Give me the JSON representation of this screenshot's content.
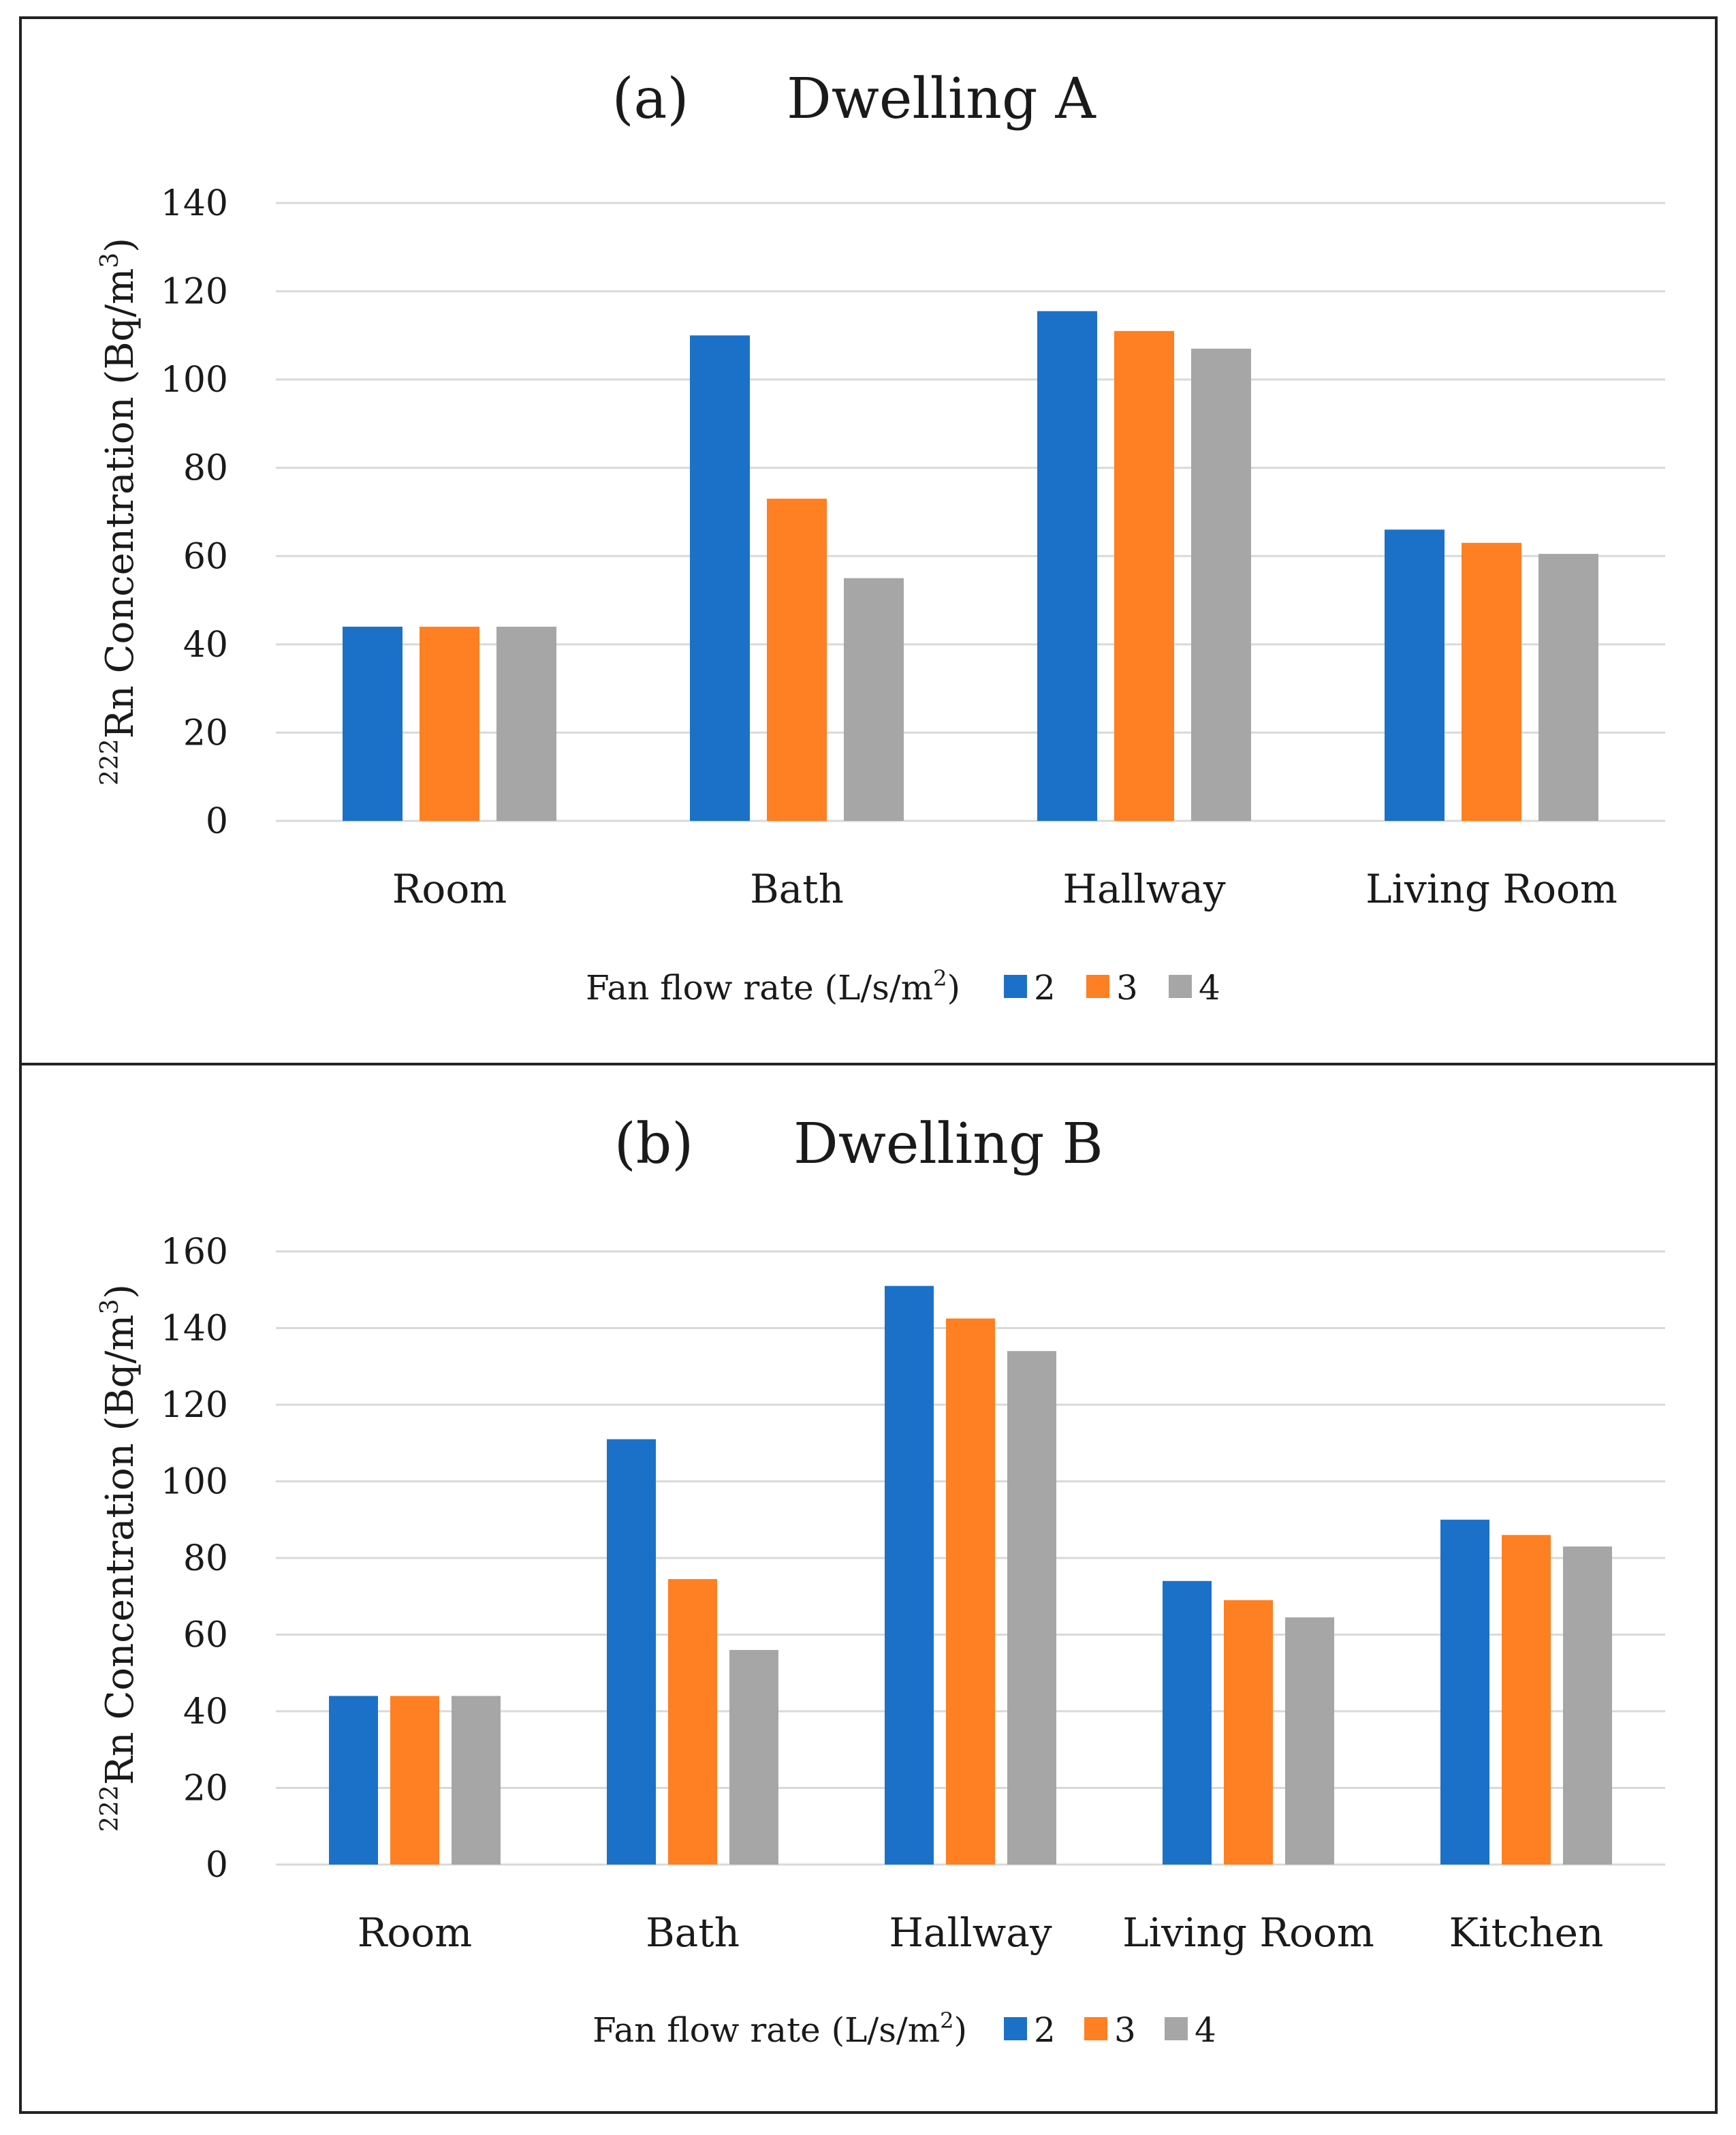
{
  "colors": {
    "series_2": "#1B71C8",
    "series_3": "#FF7F22",
    "series_4": "#A6A6A6",
    "grid": "#D9D9D9",
    "frame": "#222222"
  },
  "chart_data": [
    {
      "type": "bar",
      "panel": "(a)",
      "title": "Dwelling A",
      "ylabel_sup": "222",
      "ylabel_main": "Rn Concentration (Bq/m",
      "ylabel_unit_sup": "3",
      "ylabel_close": ")",
      "xlabel": "",
      "ylim": [
        0,
        140
      ],
      "yticks": [
        "0",
        "20",
        "40",
        "60",
        "80",
        "100",
        "120",
        "140"
      ],
      "categories": [
        "Room",
        "Bath",
        "Hallway",
        "Living Room"
      ],
      "legend_title": "Fan flow rate (L/s/m",
      "legend_title_sup": "2",
      "legend_title_close": ")",
      "series": [
        {
          "name": "2",
          "values": [
            44,
            110,
            115.5,
            66
          ]
        },
        {
          "name": "3",
          "values": [
            44,
            73,
            111,
            63
          ]
        },
        {
          "name": "4",
          "values": [
            44,
            55,
            107,
            60.5
          ]
        }
      ]
    },
    {
      "type": "bar",
      "panel": "(b)",
      "title": "Dwelling B",
      "ylabel_sup": "222",
      "ylabel_main": "Rn Concentration (Bq/m",
      "ylabel_unit_sup": "3",
      "ylabel_close": ")",
      "xlabel": "",
      "ylim": [
        0,
        160
      ],
      "yticks": [
        "0",
        "20",
        "40",
        "60",
        "80",
        "100",
        "120",
        "140",
        "160"
      ],
      "categories": [
        "Room",
        "Bath",
        "Hallway",
        "Living Room",
        "Kitchen"
      ],
      "legend_title": "Fan flow rate (L/s/m",
      "legend_title_sup": "2",
      "legend_title_close": ")",
      "series": [
        {
          "name": "2",
          "values": [
            44,
            111,
            151,
            74,
            90
          ]
        },
        {
          "name": "3",
          "values": [
            44,
            74.5,
            142.5,
            69,
            86
          ]
        },
        {
          "name": "4",
          "values": [
            44,
            56,
            134,
            64.5,
            83
          ]
        }
      ]
    }
  ]
}
